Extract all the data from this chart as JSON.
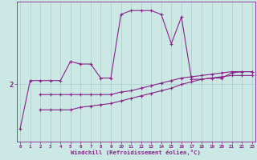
{
  "xlabel": "Windchill (Refroidissement éolien,°C)",
  "background_color": "#cce8e4",
  "line_color": "#882288",
  "grid_color": "#aacccc",
  "x_ticks": [
    0,
    1,
    2,
    3,
    4,
    5,
    6,
    7,
    8,
    9,
    10,
    11,
    12,
    13,
    14,
    15,
    16,
    17,
    18,
    19,
    20,
    21,
    22,
    23
  ],
  "ytick_val": 2,
  "ylim": [
    -2.5,
    8.5
  ],
  "xlim": [
    -0.3,
    23.3
  ],
  "line1_x": [
    0,
    1,
    2,
    3,
    4,
    5,
    6,
    7,
    8,
    9,
    10,
    11,
    12,
    13,
    14,
    15,
    16,
    17,
    18,
    19,
    20,
    21,
    22,
    23
  ],
  "line1_y": [
    -1.5,
    2.3,
    2.3,
    2.3,
    2.3,
    3.8,
    3.6,
    3.6,
    2.5,
    2.5,
    7.5,
    7.8,
    7.8,
    7.8,
    7.5,
    5.2,
    7.3,
    2.4,
    2.4,
    2.5,
    2.5,
    2.9,
    3.0,
    3.0
  ],
  "line2_x": [
    2,
    3,
    4,
    5,
    6,
    7,
    8,
    9,
    10,
    11,
    12,
    13,
    14,
    15,
    16,
    17,
    18,
    19,
    20,
    21,
    22,
    23
  ],
  "line2_y": [
    1.2,
    1.2,
    1.2,
    1.2,
    1.2,
    1.2,
    1.2,
    1.2,
    1.4,
    1.5,
    1.7,
    1.9,
    2.1,
    2.3,
    2.5,
    2.6,
    2.7,
    2.8,
    2.9,
    3.0,
    3.0,
    3.0
  ],
  "line3_x": [
    2,
    3,
    4,
    5,
    6,
    7,
    8,
    9,
    10,
    11,
    12,
    13,
    14,
    15,
    16,
    17,
    18,
    19,
    20,
    21,
    22,
    23
  ],
  "line3_y": [
    0.0,
    0.0,
    0.0,
    0.0,
    0.2,
    0.3,
    0.4,
    0.5,
    0.7,
    0.9,
    1.1,
    1.3,
    1.5,
    1.7,
    2.0,
    2.2,
    2.4,
    2.5,
    2.6,
    2.7,
    2.7,
    2.7
  ]
}
